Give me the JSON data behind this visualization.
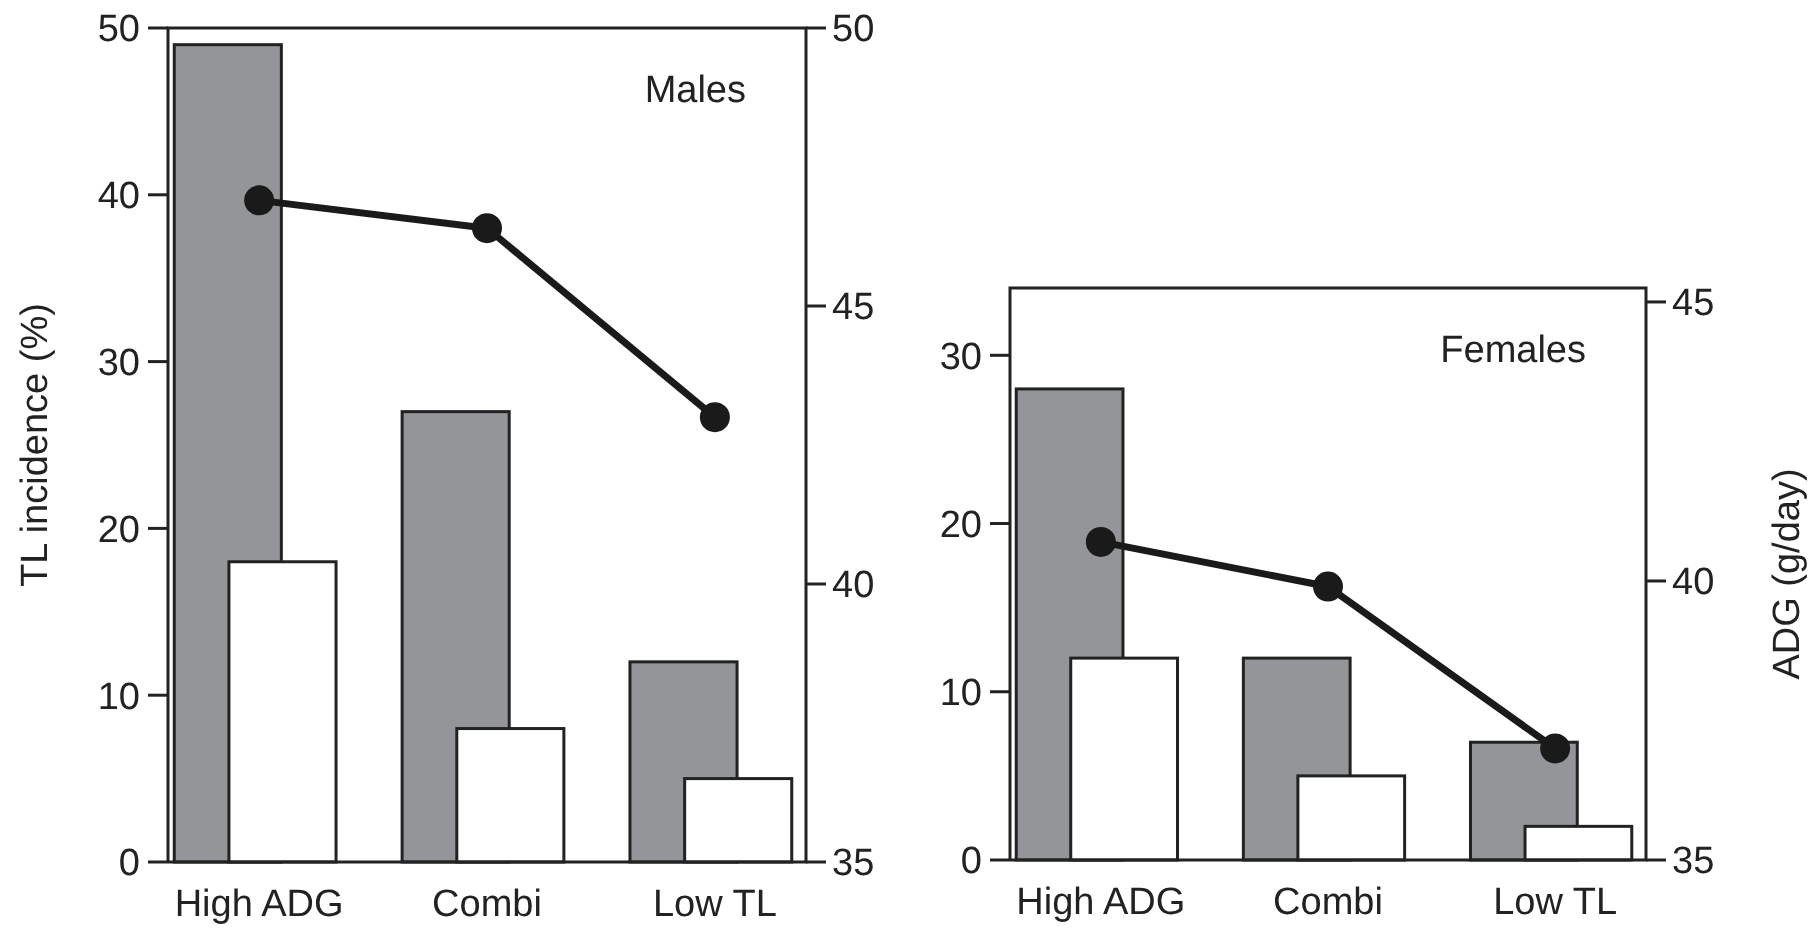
{
  "chart_data": [
    {
      "type": "bar",
      "ylabel": "TL incidence (%)",
      "annotations": [
        "Males"
      ],
      "categories": [
        "High ADG",
        "Combi",
        "Low TL"
      ],
      "series": [
        {
          "color": "#939598",
          "values": [
            49,
            27,
            12
          ]
        },
        {
          "color": "#ffffff",
          "values": [
            18,
            8,
            5
          ]
        },
        {
          "type": "line",
          "axis": "y2",
          "color": "#1a1a1a",
          "values": [
            46.9,
            46.4,
            43
          ]
        }
      ],
      "ylim": [
        0,
        50
      ],
      "yticks": [
        0,
        10,
        20,
        30,
        40,
        50
      ],
      "y2lim": [
        35,
        50
      ],
      "y2ticks": [
        35,
        40,
        45,
        50
      ],
      "marker": "circle"
    },
    {
      "type": "bar",
      "y2label": "ADG (g/day)",
      "annotations": [
        "Females"
      ],
      "categories": [
        "High ADG",
        "Combi",
        "Low TL"
      ],
      "series": [
        {
          "color": "#939598",
          "values": [
            28,
            12,
            7
          ]
        },
        {
          "color": "#ffffff",
          "values": [
            12,
            5,
            2
          ]
        },
        {
          "type": "line",
          "axis": "y2",
          "color": "#1a1a1a",
          "values": [
            40.7,
            39.9,
            37
          ]
        }
      ],
      "ylim": [
        0,
        34
      ],
      "yticks": [
        0,
        10,
        20,
        30
      ],
      "y2lim": [
        35,
        45.25
      ],
      "y2ticks": [
        35,
        40,
        45
      ],
      "marker": "circle"
    }
  ]
}
